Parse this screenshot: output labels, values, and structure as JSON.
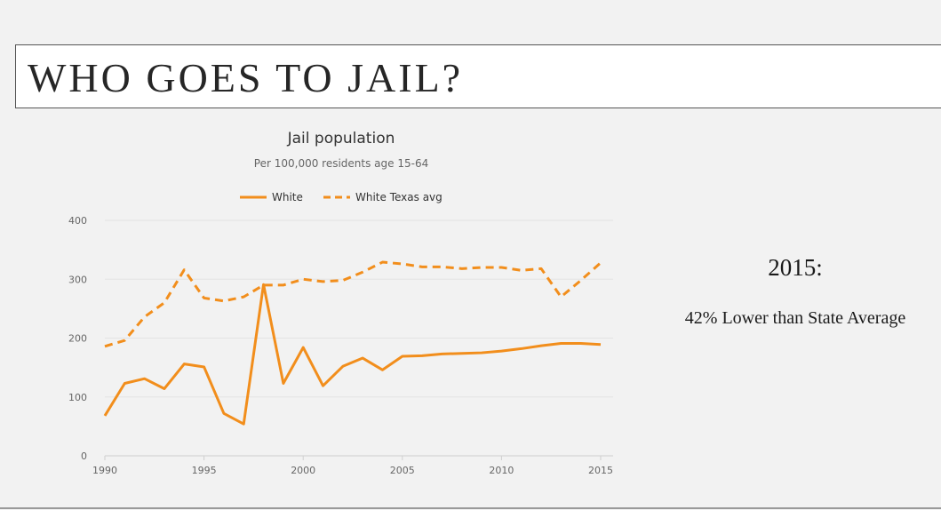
{
  "slide": {
    "title": "WHO GOES TO JAIL?",
    "side_year": "2015:",
    "side_note": "42% Lower than State Average"
  },
  "chart_data": {
    "type": "line",
    "title": "Jail population",
    "subtitle": "Per 100,000 residents age 15-64",
    "legend_position": "top-center",
    "grid": true,
    "xlim": [
      1990,
      2015
    ],
    "ylim": [
      0,
      400
    ],
    "x_ticks": [
      1990,
      1995,
      2000,
      2005,
      2010,
      2015
    ],
    "y_ticks": [
      0,
      100,
      200,
      300,
      400
    ],
    "x": [
      1990,
      1991,
      1992,
      1993,
      1994,
      1995,
      1996,
      1997,
      1998,
      1999,
      2000,
      2001,
      2002,
      2003,
      2004,
      2005,
      2006,
      2007,
      2008,
      2009,
      2010,
      2011,
      2012,
      2013,
      2014,
      2015
    ],
    "series": [
      {
        "name": "White",
        "style": "solid",
        "color": "#f28e1c",
        "values": [
          68,
          123,
          131,
          114,
          156,
          151,
          72,
          54,
          291,
          123,
          184,
          119,
          152,
          166,
          146,
          169,
          170,
          173,
          174,
          175,
          178,
          182,
          187,
          191,
          191,
          189
        ]
      },
      {
        "name": "White Texas avg",
        "style": "dashed",
        "color": "#f28e1c",
        "values": [
          186,
          196,
          236,
          260,
          316,
          268,
          263,
          270,
          290,
          290,
          300,
          296,
          298,
          312,
          329,
          326,
          321,
          321,
          318,
          320,
          320,
          315,
          318,
          270,
          298,
          328
        ]
      }
    ]
  }
}
